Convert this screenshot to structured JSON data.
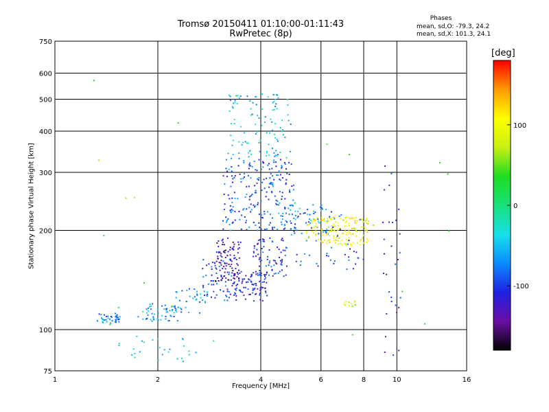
{
  "chart_data": {
    "type": "scatter",
    "title": "Tromsø 20150411 01:10:00-01:11:43",
    "subtitle": "RwPretec (8p)",
    "phases_header": "Phases",
    "phases_stats": [
      "mean, sd,O: -79.3, 24.2",
      "mean, sd,X: 101.3, 24.1"
    ],
    "xlabel": "Frequency [MHz]",
    "ylabel": "Stationary phase Virtual Height [km]",
    "x_scale": "log",
    "y_scale": "log",
    "xlim": [
      1,
      16
    ],
    "ylim": [
      75,
      750
    ],
    "x_ticks": [
      1,
      2,
      4,
      6,
      8,
      10,
      16
    ],
    "y_ticks": [
      75,
      100,
      200,
      300,
      400,
      500,
      600,
      750
    ],
    "grid": true,
    "colorbar": {
      "label": "[deg]",
      "range": [
        -180,
        180
      ],
      "ticks": [
        100,
        0,
        -100
      ],
      "colormap": [
        "#000000",
        "#6a0fa5",
        "#1f20e0",
        "#0a8cff",
        "#18e0e8",
        "#18e07a",
        "#1fdc1f",
        "#c8f014",
        "#ffff00",
        "#ff9a00",
        "#ff0000"
      ]
    },
    "series": [
      {
        "clusters": [
          {
            "f": [
              1.33,
              1.55
            ],
            "h": [
              104,
              112
            ],
            "phase": -75,
            "n": 40
          },
          {
            "f": [
              1.75,
              2.3
            ],
            "h": [
              106,
              120
            ],
            "phase": -70,
            "n": 50
          },
          {
            "f": [
              2.2,
              2.8
            ],
            "h": [
              112,
              135
            ],
            "phase": -65,
            "n": 40
          },
          {
            "f": [
              2.7,
              3.3
            ],
            "h": [
              122,
              165
            ],
            "phase": -95,
            "n": 60
          },
          {
            "f": [
              2.95,
              3.5
            ],
            "h": [
              140,
              190
            ],
            "phase": -135,
            "n": 90
          },
          {
            "f": [
              3.3,
              4.2
            ],
            "h": [
              122,
              150
            ],
            "phase": -110,
            "n": 90
          },
          {
            "f": [
              3.8,
              4.8
            ],
            "h": [
              145,
              190
            ],
            "phase": -105,
            "n": 80
          },
          {
            "f": [
              3.1,
              5.0
            ],
            "h": [
              200,
              330
            ],
            "phase": -90,
            "n": 220
          },
          {
            "f": [
              3.2,
              4.9
            ],
            "h": [
              330,
              520
            ],
            "phase": -50,
            "n": 110
          },
          {
            "f": [
              4.5,
              6.3
            ],
            "h": [
              190,
              240
            ],
            "phase": -65,
            "n": 60
          },
          {
            "f": [
              5.4,
              8.3
            ],
            "h": [
              180,
              220
            ],
            "phase": 100,
            "n": 160
          },
          {
            "f": [
              5.0,
              8.0
            ],
            "h": [
              150,
              230
            ],
            "phase": -100,
            "n": 50
          },
          {
            "f": [
              1.5,
              3.2
            ],
            "h": [
              80,
              96
            ],
            "phase": -40,
            "n": 28
          },
          {
            "f": [
              7.0,
              7.6
            ],
            "h": [
              117,
              122
            ],
            "phase": 80,
            "n": 12
          },
          {
            "f": [
              9.1,
              10.3
            ],
            "h": [
              80,
              340
            ],
            "phase": -120,
            "n": 30
          },
          {
            "f": [
              1.0,
              16.0
            ],
            "h": [
              80,
              600
            ],
            "phase": 30,
            "n": 20
          }
        ]
      }
    ]
  }
}
